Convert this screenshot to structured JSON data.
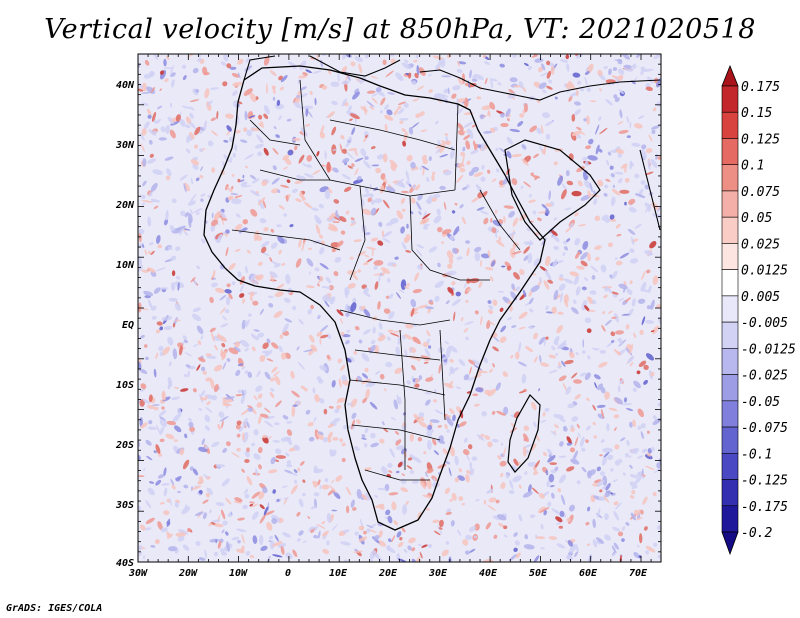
{
  "title": "Vertical velocity [m/s] at 850hPa, VT: 2021020518",
  "footer": "GrADS: IGES/COLA",
  "lat_labels": [
    "40N",
    "30N",
    "20N",
    "10N",
    "EQ",
    "10S",
    "20S",
    "30S",
    "40S"
  ],
  "lon_labels": [
    "30W",
    "20W",
    "10W",
    "0",
    "10E",
    "20E",
    "30E",
    "40E",
    "50E",
    "60E",
    "70E"
  ],
  "colorbar": {
    "levels": [
      "0.175",
      "0.15",
      "0.125",
      "0.1",
      "0.075",
      "0.05",
      "0.025",
      "0.0125",
      "0.005",
      "-0.005",
      "-0.0125",
      "-0.025",
      "-0.05",
      "-0.075",
      "-0.1",
      "-0.125",
      "-0.175",
      "-0.2"
    ],
    "colors": [
      "#a81419",
      "#c3272b",
      "#d8433f",
      "#e46a63",
      "#ee8f86",
      "#f4b0a8",
      "#f9cdc6",
      "#fde6e2",
      "#ffffff",
      "#e8e8fa",
      "#d2d2f5",
      "#b8b8ee",
      "#9d9de6",
      "#8080dc",
      "#6464d1",
      "#4a48c2",
      "#332fb0",
      "#20189a",
      "#140b85"
    ]
  },
  "colors": {
    "land_border": "#000000",
    "positive": "#d43a36",
    "negative": "#4b4bcf"
  }
}
